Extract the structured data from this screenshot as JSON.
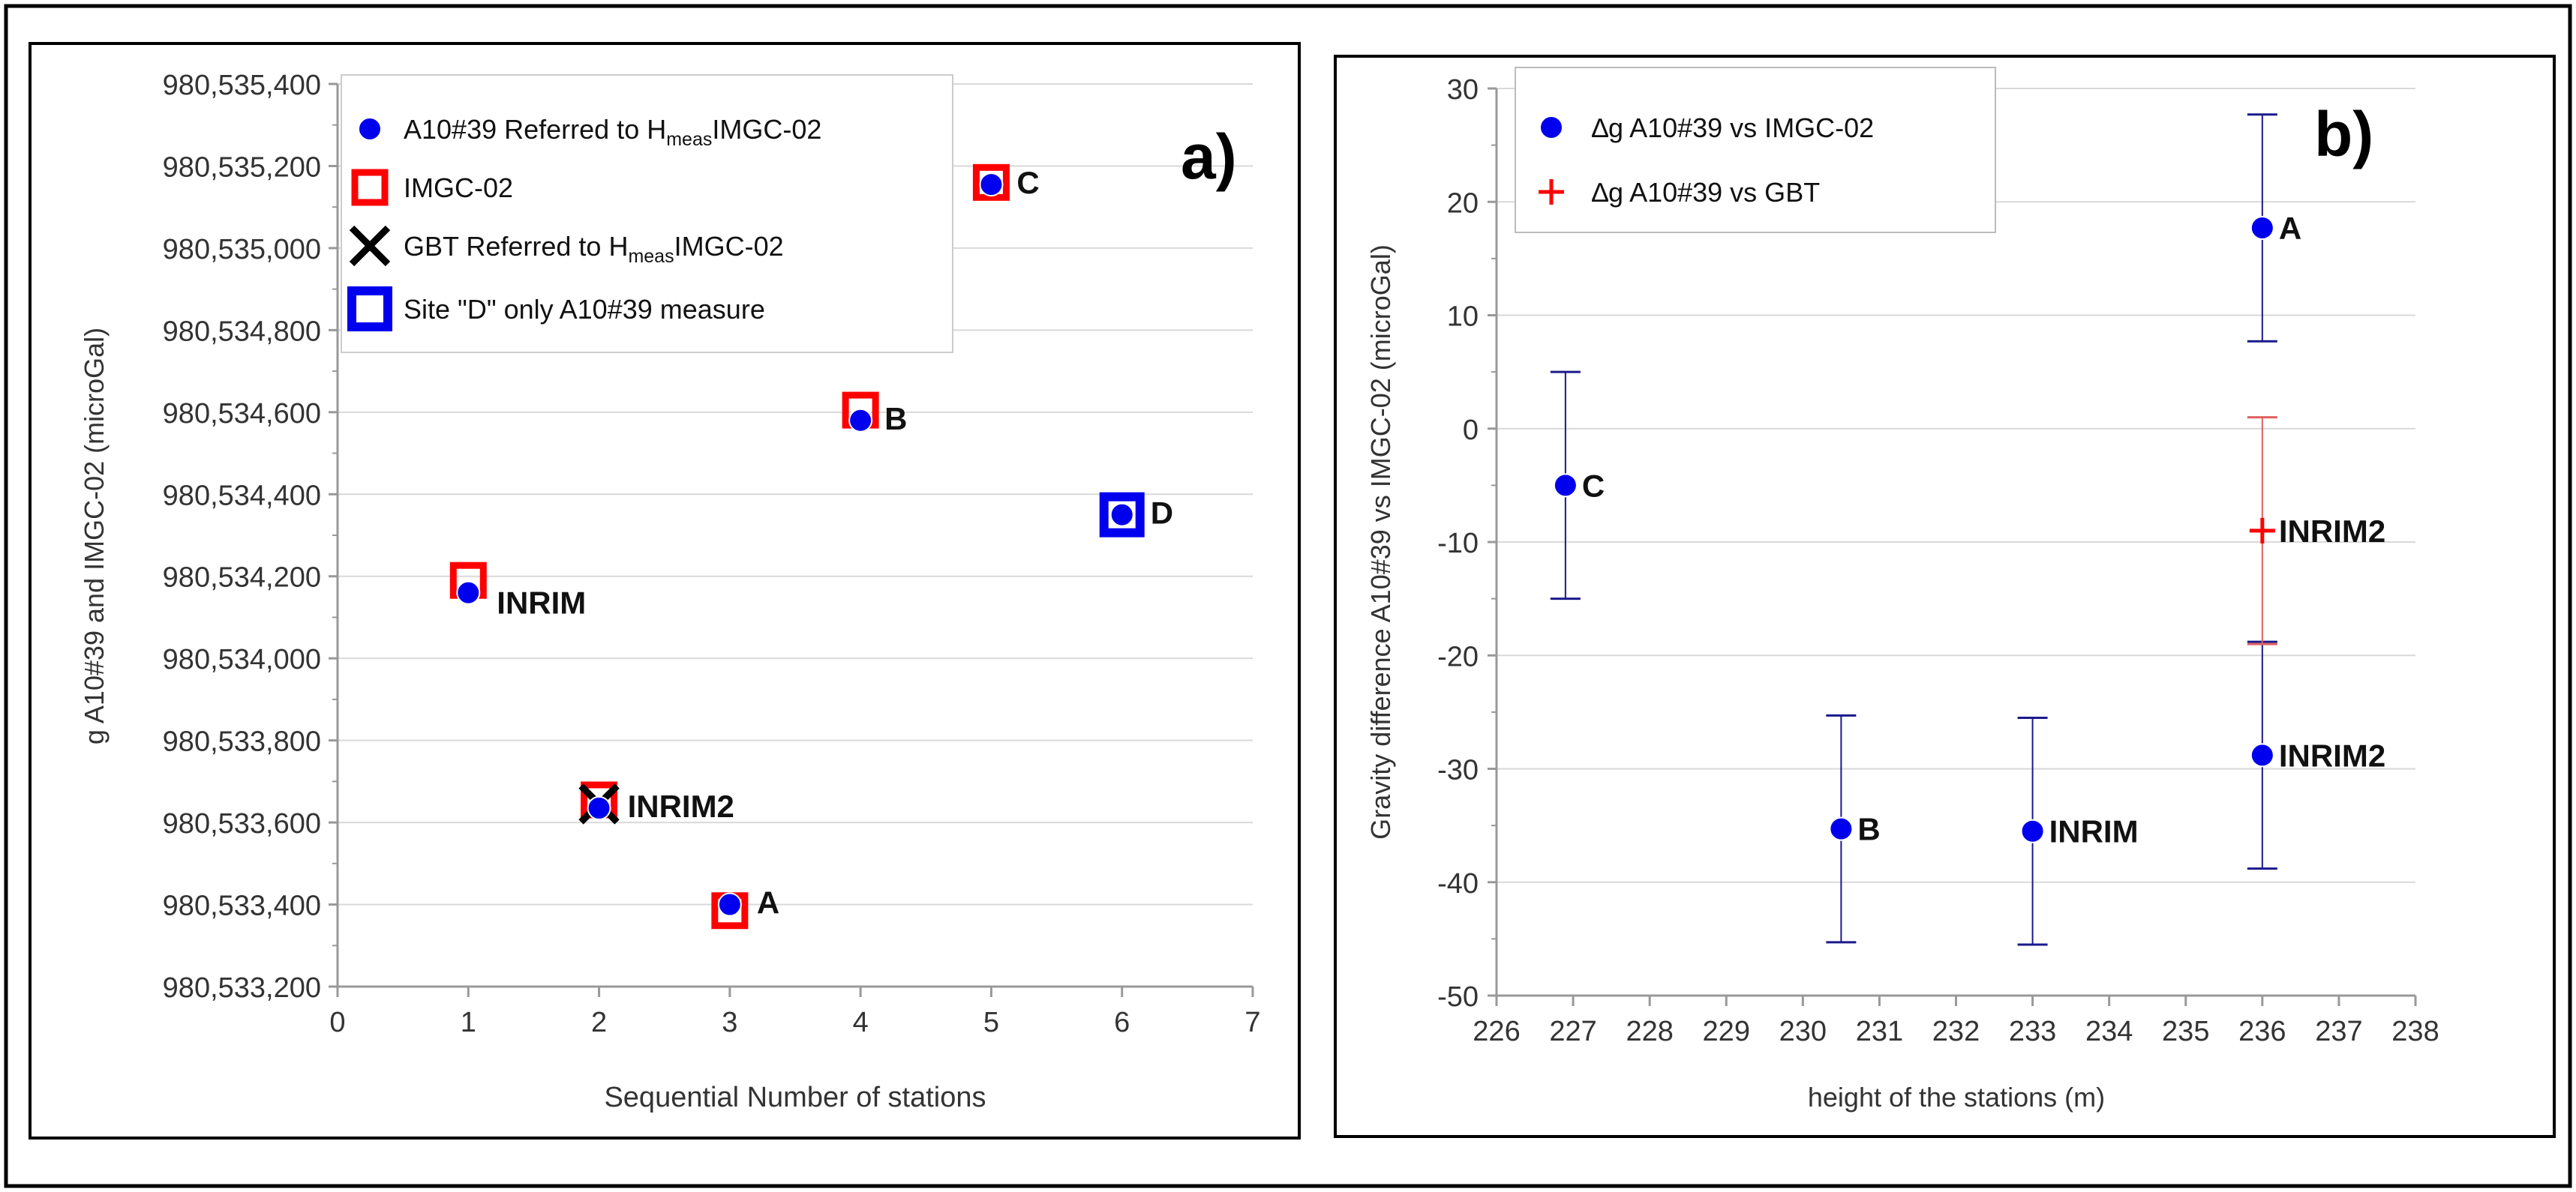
{
  "chart_data": [
    {
      "type": "scatter",
      "panel_label": "a)",
      "xlabel": "Sequential Number of stations",
      "ylabel": "g A10#39 and IMGC-02 (microGal)",
      "xlim": [
        0,
        7
      ],
      "ylim": [
        980533200,
        980535400
      ],
      "xticks": [
        0,
        1,
        2,
        3,
        4,
        5,
        6,
        7
      ],
      "yticks": [
        980533200,
        980533400,
        980533600,
        980533800,
        980534000,
        980534200,
        980534400,
        980534600,
        980534800,
        980535000,
        980535200,
        980535400
      ],
      "ytick_labels": [
        "980,533,200",
        "980,533,400",
        "980,533,600",
        "980,533,800",
        "980,534,000",
        "980,534,200",
        "980,534,400",
        "980,534,600",
        "980,534,800",
        "980,535,000",
        "980,535,200",
        "980,535,400"
      ],
      "grid": "horizontal",
      "legend_position": "top-left",
      "legend": [
        {
          "text": "A10#39 Referred to ",
          "sub": "meas",
          "main": "H",
          "tail": "IMGC-02",
          "marker": "circle"
        },
        {
          "text": "IMGC-02",
          "sub": "",
          "main": "",
          "tail": "",
          "marker": "red-square"
        },
        {
          "text": "GBT Referred to ",
          "sub": "meas",
          "main": "H",
          "tail": "IMGC-02",
          "marker": "x"
        },
        {
          "text": "Site \"D\" only A10#39 measure",
          "sub": "",
          "main": "",
          "tail": "",
          "marker": "blue-square"
        }
      ],
      "series": [
        {
          "marker": "circle",
          "color": "#0000ee",
          "points": [
            {
              "x": 1,
              "y": 980534160
            },
            {
              "x": 2,
              "y": 980533635
            },
            {
              "x": 3,
              "y": 980533400
            },
            {
              "x": 4,
              "y": 980534580
            },
            {
              "x": 5,
              "y": 980535155
            },
            {
              "x": 6,
              "y": 980534350
            }
          ]
        },
        {
          "marker": "red-square",
          "color": "#ff0000",
          "points": [
            {
              "x": 1,
              "y": 980534190
            },
            {
              "x": 2,
              "y": 980533655
            },
            {
              "x": 3,
              "y": 980533385
            },
            {
              "x": 4,
              "y": 980534605
            },
            {
              "x": 5,
              "y": 980535160
            }
          ]
        },
        {
          "marker": "x",
          "color": "#000000",
          "points": [
            {
              "x": 2,
              "y": 980533645
            }
          ]
        },
        {
          "marker": "blue-square",
          "color": "#0000ee",
          "points": [
            {
              "x": 6,
              "y": 980534350
            }
          ]
        }
      ],
      "point_labels": [
        {
          "text": "INRIM",
          "x": 1,
          "y": 980534160
        },
        {
          "text": "INRIM2",
          "x": 2,
          "y": 980533635
        },
        {
          "text": "A",
          "x": 3,
          "y": 980533400
        },
        {
          "text": "B",
          "x": 4,
          "y": 980534580
        },
        {
          "text": "C",
          "x": 5,
          "y": 980535155
        },
        {
          "text": "D",
          "x": 6,
          "y": 980534350
        }
      ]
    },
    {
      "type": "scatter",
      "panel_label": "b)",
      "xlabel": "height of the stations (m)",
      "ylabel": "Gravity difference  A10#39 vs IMGC-02 (microGal)",
      "xlim": [
        226,
        238
      ],
      "ylim": [
        -50,
        30
      ],
      "xticks": [
        226,
        227,
        228,
        229,
        230,
        231,
        232,
        233,
        234,
        235,
        236,
        237,
        238
      ],
      "yticks": [
        -50,
        -40,
        -30,
        -20,
        -10,
        0,
        10,
        20,
        30
      ],
      "grid": "horizontal",
      "legend_position": "top-left",
      "legend": [
        {
          "text": "∆g A10#39 vs IMGC-02",
          "marker": "circle"
        },
        {
          "text": "∆g A10#39 vs GBT",
          "marker": "plus"
        }
      ],
      "series": [
        {
          "name": "∆g A10#39 vs IMGC-02",
          "marker": "circle",
          "color": "#0000ee",
          "error_color": "#1a1a8c",
          "points": [
            {
              "x": 226.9,
              "y": -5,
              "err": 10
            },
            {
              "x": 230.5,
              "y": -35.3,
              "err": 10
            },
            {
              "x": 233,
              "y": -35.5,
              "err": 10
            },
            {
              "x": 236,
              "y": 17.7,
              "err": 10
            },
            {
              "x": 236,
              "y": -28.8,
              "err": 10
            }
          ]
        },
        {
          "name": "∆g A10#39 vs GBT",
          "marker": "plus",
          "color": "#ff0000",
          "error_color": "#e06060",
          "points": [
            {
              "x": 236,
              "y": -9,
              "err": 10
            }
          ]
        }
      ],
      "point_labels": [
        {
          "text": "C",
          "x": 226.9,
          "y": -5
        },
        {
          "text": "B",
          "x": 230.5,
          "y": -35.3
        },
        {
          "text": "INRIM",
          "x": 233,
          "y": -35.5
        },
        {
          "text": "A",
          "x": 236,
          "y": 17.7
        },
        {
          "text": "INRIM2",
          "x": 236,
          "y": -28.8
        },
        {
          "text": "INRIM2",
          "x": 236,
          "y": -9
        }
      ]
    }
  ]
}
